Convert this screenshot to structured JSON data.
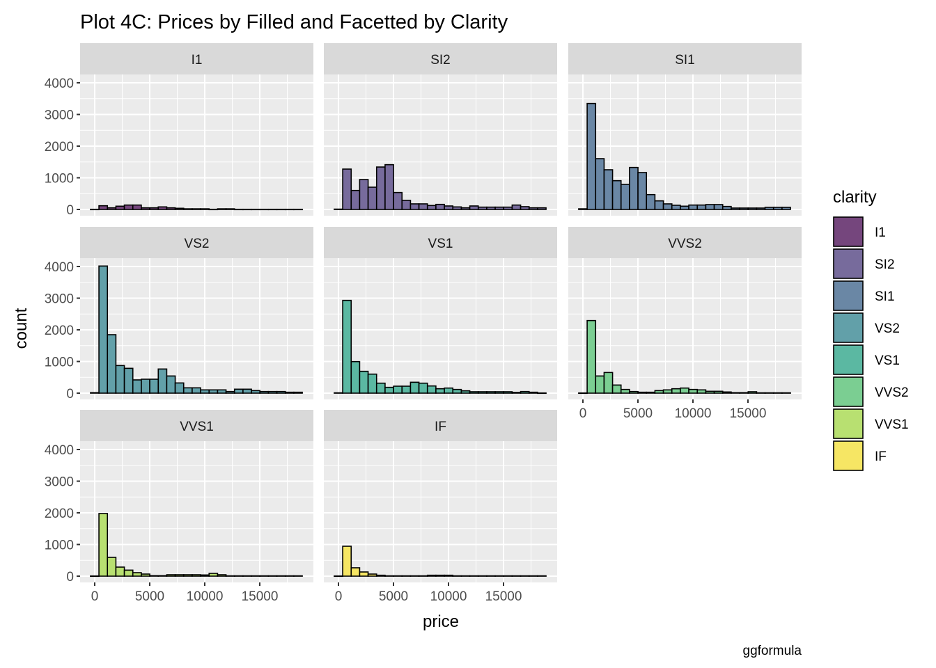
{
  "chart_data": {
    "type": "bar",
    "subtype": "faceted-histogram",
    "title": "Plot 4C: Prices by Filled and Facetted by Clarity",
    "xlabel": "price",
    "ylabel": "count",
    "caption": "ggformula",
    "xlim": [
      -700,
      19300
    ],
    "ylim": [
      0,
      4200
    ],
    "x_ticks": [
      0,
      5000,
      10000,
      15000
    ],
    "x_tick_labels": [
      "0",
      "5000",
      "10000",
      "15000"
    ],
    "y_ticks": [
      0,
      1000,
      2000,
      3000,
      4000
    ],
    "y_tick_labels": [
      "0",
      "1000",
      "2000",
      "3000",
      "4000"
    ],
    "grid": true,
    "bin_start": -385,
    "bin_width": 770,
    "legend": {
      "title": "clarity",
      "position": "right",
      "entries": [
        {
          "label": "I1",
          "color": "#75467d"
        },
        {
          "label": "SI2",
          "color": "#776b9c"
        },
        {
          "label": "SI1",
          "color": "#6a87a5"
        },
        {
          "label": "VS2",
          "color": "#62a0a9"
        },
        {
          "label": "VS1",
          "color": "#5bb8a2"
        },
        {
          "label": "VVS2",
          "color": "#7bce92"
        },
        {
          "label": "VVS1",
          "color": "#b8e071"
        },
        {
          "label": "IF",
          "color": "#f6e664"
        }
      ]
    },
    "facets": [
      {
        "name": "I1",
        "color": "#75467d",
        "values": [
          5,
          117,
          51,
          103,
          139,
          139,
          51,
          51,
          81,
          51,
          37,
          20,
          20,
          20,
          5,
          20,
          20,
          5,
          5,
          5,
          5,
          5,
          5,
          5,
          5
        ]
      },
      {
        "name": "SI2",
        "color": "#776b9c",
        "values": [
          10,
          1275,
          600,
          945,
          703,
          1340,
          1414,
          535,
          286,
          176,
          176,
          125,
          160,
          110,
          80,
          51,
          110,
          73,
          73,
          73,
          73,
          139,
          88,
          51,
          51
        ]
      },
      {
        "name": "SI1",
        "color": "#6a87a5",
        "values": [
          20,
          3348,
          1604,
          1253,
          908,
          791,
          1326,
          1165,
          469,
          271,
          176,
          132,
          103,
          139,
          139,
          154,
          154,
          95,
          44,
          44,
          44,
          44,
          66,
          66,
          66
        ]
      },
      {
        "name": "VS2",
        "color": "#62a0a9",
        "values": [
          15,
          4015,
          1846,
          872,
          784,
          418,
          440,
          440,
          762,
          542,
          322,
          168,
          168,
          103,
          103,
          103,
          51,
          125,
          125,
          81,
          51,
          51,
          51,
          29,
          29
        ]
      },
      {
        "name": "VS1",
        "color": "#5bb8a2",
        "values": [
          10,
          2930,
          996,
          689,
          601,
          315,
          183,
          220,
          220,
          344,
          315,
          227,
          139,
          161,
          117,
          73,
          44,
          44,
          44,
          44,
          44,
          22,
          51,
          29,
          5
        ]
      },
      {
        "name": "VVS2",
        "color": "#7bce92",
        "values": [
          5,
          2293,
          542,
          652,
          256,
          117,
          51,
          29,
          29,
          81,
          103,
          139,
          161,
          117,
          103,
          59,
          59,
          37,
          15,
          15,
          44,
          10,
          10,
          10,
          10
        ]
      },
      {
        "name": "VVS1",
        "color": "#b8e071",
        "values": [
          5,
          1978,
          593,
          286,
          190,
          110,
          66,
          15,
          15,
          44,
          44,
          44,
          44,
          37,
          88,
          44,
          10,
          10,
          10,
          10,
          10,
          10,
          10,
          10,
          10
        ]
      },
      {
        "name": "IF",
        "color": "#f6e664",
        "values": [
          5,
          945,
          264,
          132,
          66,
          29,
          10,
          10,
          10,
          10,
          10,
          29,
          29,
          29,
          10,
          10,
          10,
          10,
          10,
          10,
          10,
          10,
          10,
          10,
          10
        ]
      }
    ],
    "x_axis_facets": [
      "VVS2",
      "VVS1",
      "IF"
    ],
    "y_axis_facets": [
      "I1",
      "VS2",
      "VVS1"
    ]
  }
}
